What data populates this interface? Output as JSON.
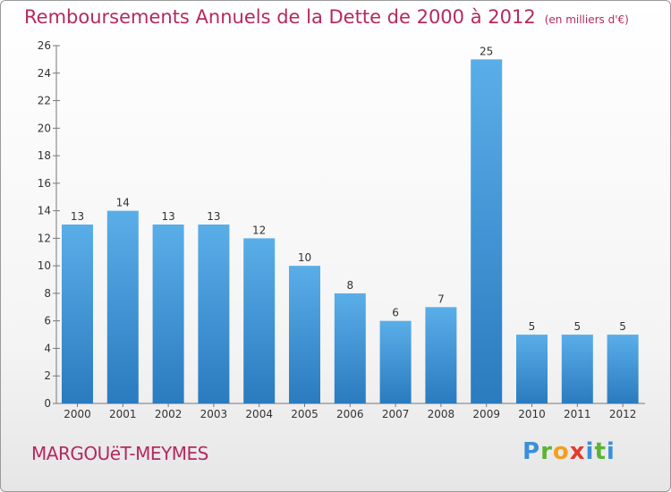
{
  "header": {
    "title": "Remboursements Annuels de la Dette de 2000 à 2012",
    "unit": "(en milliers d'€)"
  },
  "footer": {
    "commune": "MARGOUëT-MEYMES",
    "logo": "Proxiti"
  },
  "chart_data": {
    "type": "bar",
    "categories": [
      "2000",
      "2001",
      "2002",
      "2003",
      "2004",
      "2005",
      "2006",
      "2007",
      "2008",
      "2009",
      "2010",
      "2011",
      "2012"
    ],
    "values": [
      13,
      14,
      13,
      13,
      12,
      10,
      8,
      6,
      7,
      25,
      5,
      5,
      5
    ],
    "title": "Remboursements Annuels de la Dette de 2000 à 2012",
    "subtitle": "(en milliers d'€)",
    "xlabel": "",
    "ylabel": "",
    "ylim": [
      0,
      26
    ],
    "yticks": [
      0,
      2,
      4,
      6,
      8,
      10,
      12,
      14,
      16,
      18,
      20,
      22,
      24,
      26
    ],
    "grid": false,
    "legend": "none",
    "bar_color_top": "#5aaee8",
    "bar_color_bottom": "#2a7bbf",
    "title_color": "#b5295f"
  }
}
